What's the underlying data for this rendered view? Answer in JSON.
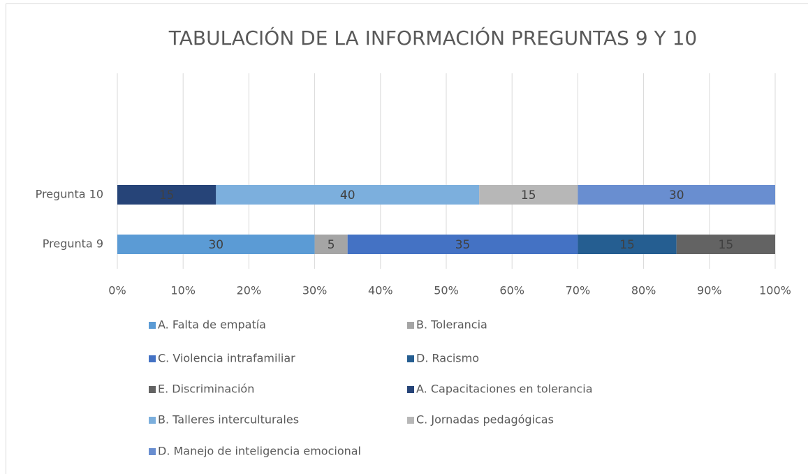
{
  "chart_data": {
    "type": "bar",
    "orientation": "horizontal",
    "stacked": true,
    "title": "TABULACIÓN DE LA INFORMACIÓN PREGUNTAS 9 Y 10",
    "categories": [
      "Pregunta 9",
      "Pregunta 10"
    ],
    "series": [
      {
        "name": "A. Falta de empatía",
        "color": "#5b9bd5",
        "values": [
          30,
          null
        ]
      },
      {
        "name": "B. Tolerancia",
        "color": "#a5a5a5",
        "values": [
          5,
          null
        ]
      },
      {
        "name": "C. Violencia intrafamiliar",
        "color": "#4472c4",
        "values": [
          35,
          null
        ]
      },
      {
        "name": "D. Racismo",
        "color": "#255e91",
        "values": [
          15,
          null
        ]
      },
      {
        "name": "E. Discriminación",
        "color": "#636363",
        "values": [
          15,
          null
        ]
      },
      {
        "name": "A. Capacitaciones en tolerancia",
        "color": "#264478",
        "values": [
          null,
          15
        ]
      },
      {
        "name": "B. Talleres interculturales",
        "color": "#7cafdd",
        "values": [
          null,
          40
        ]
      },
      {
        "name": "C. Jornadas pedagógicas",
        "color": "#b7b7b7",
        "values": [
          null,
          15
        ]
      },
      {
        "name": "D. Manejo de inteligencia emocional",
        "color": "#698ed0",
        "values": [
          null,
          30
        ]
      }
    ],
    "xlim": [
      0,
      100
    ],
    "xticks": [
      {
        "value": 0,
        "label": "0%"
      },
      {
        "value": 10,
        "label": "10%"
      },
      {
        "value": 20,
        "label": "20%"
      },
      {
        "value": 30,
        "label": "30%"
      },
      {
        "value": 40,
        "label": "40%"
      },
      {
        "value": 50,
        "label": "50%"
      },
      {
        "value": 60,
        "label": "60%"
      },
      {
        "value": 70,
        "label": "70%"
      },
      {
        "value": 80,
        "label": "80%"
      },
      {
        "value": 90,
        "label": "90%"
      },
      {
        "value": 100,
        "label": "100%"
      }
    ],
    "grid": true,
    "legend": "bottom"
  }
}
